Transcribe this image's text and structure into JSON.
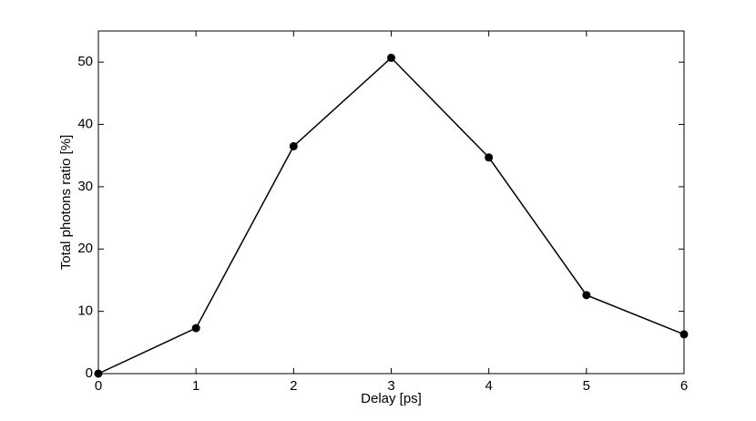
{
  "chart_data": {
    "type": "line",
    "x_label": "Delay [ps]",
    "y_label": "Total photons ratio [%]",
    "x": [
      0,
      1,
      2,
      3,
      4,
      5,
      6
    ],
    "values": [
      0,
      7.3,
      36.5,
      50.7,
      34.7,
      12.6,
      6.3
    ],
    "color": "#000000",
    "xlim": [
      0,
      6
    ],
    "ylim": [
      0,
      55
    ],
    "xticks": [
      0,
      1,
      2,
      3,
      4,
      5,
      6
    ],
    "yticks": [
      0,
      10,
      20,
      30,
      40,
      50
    ],
    "grid": false
  }
}
